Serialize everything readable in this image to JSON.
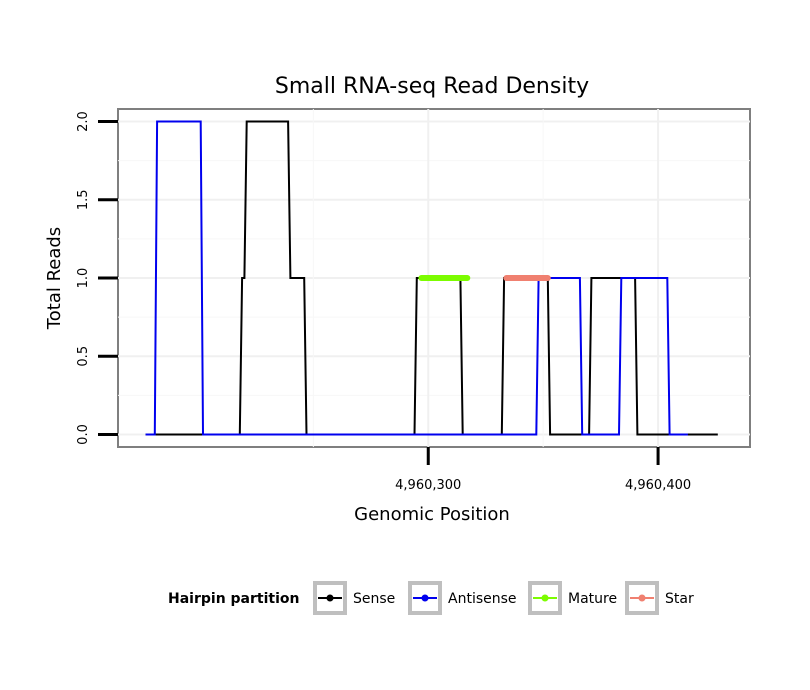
{
  "chart_data": {
    "type": "line",
    "title": "Small RNA-seq Read Density",
    "xlabel": "Genomic Position",
    "ylabel": "Total Reads",
    "xlim": [
      4960165,
      4960440
    ],
    "ylim": [
      -0.08,
      2.08
    ],
    "x_ticks": [
      {
        "value": 4960300,
        "label": "4,960,300"
      },
      {
        "value": 4960400,
        "label": "4,960,400"
      }
    ],
    "y_ticks": [
      {
        "value": 0,
        "label": "0.0"
      },
      {
        "value": 0.5,
        "label": "0.5"
      },
      {
        "value": 1,
        "label": "1.0"
      },
      {
        "value": 1.5,
        "label": "1.5"
      },
      {
        "value": 2,
        "label": "2.0"
      }
    ],
    "grid": true,
    "legend": {
      "title": "Hairpin partition",
      "position": "bottom"
    },
    "series": [
      {
        "name": "Sense",
        "color": "#000000",
        "x": [
          4960177,
          4960218,
          4960219,
          4960220,
          4960221,
          4960222,
          4960239,
          4960240,
          4960246,
          4960247,
          4960294,
          4960295,
          4960314,
          4960315,
          4960332,
          4960333,
          4960352,
          4960353,
          4960370,
          4960371,
          4960390,
          4960391,
          4960426
        ],
        "values": [
          0,
          0,
          1,
          1,
          2,
          2,
          2,
          1,
          1,
          0,
          0,
          1,
          1,
          0,
          0,
          1,
          1,
          0,
          0,
          1,
          1,
          0,
          0
        ]
      },
      {
        "name": "Antisense",
        "color": "#0000ee",
        "x": [
          4960177,
          4960181,
          4960182,
          4960201,
          4960202,
          4960347,
          4960348,
          4960366,
          4960367,
          4960383,
          4960384,
          4960404,
          4960405,
          4960413
        ],
        "values": [
          0,
          0,
          2,
          2,
          0,
          0,
          1,
          1,
          0,
          0,
          1,
          1,
          0,
          0
        ]
      },
      {
        "name": "Mature",
        "color": "#7cfc00",
        "x": [
          4960297,
          4960317
        ],
        "values": [
          1,
          1
        ]
      },
      {
        "name": "Star",
        "color": "#f08070",
        "x": [
          4960334,
          4960352
        ],
        "values": [
          1,
          1
        ]
      }
    ]
  }
}
